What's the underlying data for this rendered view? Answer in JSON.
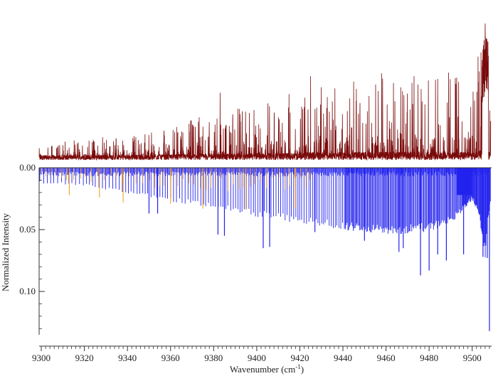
{
  "chart_data": {
    "type": "line",
    "title": "",
    "xlabel": "Wavenumber (cm⁻¹)",
    "ylabel": "Normalized Intensity",
    "xlim": [
      9299,
      9509
    ],
    "ylim": [
      0.0,
      0.135
    ],
    "x_ticks": [
      9300,
      9320,
      9340,
      9360,
      9380,
      9400,
      9420,
      9440,
      9460,
      9480,
      9500
    ],
    "x_tick_labels": [
      "9300",
      "9320",
      "9340",
      "9360",
      "9380",
      "9400",
      "9420",
      "9440",
      "9460",
      "9480",
      "9500"
    ],
    "y_ticks": [
      0.0,
      0.05,
      0.1
    ],
    "y_tick_labels": [
      "0.00",
      "0.05",
      "0.10"
    ],
    "grid": false,
    "legend": "none",
    "colors": {
      "observed": "#7a0a0a",
      "simulated_main": "#2222ee",
      "simulated_secondary": "#f0a020",
      "axis": "#333333"
    },
    "series": [
      {
        "role": "observed spectrum (upper trace, arbitrary scale)",
        "envelope": {
          "x": [
            9299,
            9320,
            9340,
            9360,
            9380,
            9400,
            9420,
            9425,
            9440,
            9460,
            9480,
            9495,
            9502,
            9505,
            9507,
            9509
          ],
          "peak_height": [
            0.08,
            0.12,
            0.16,
            0.22,
            0.32,
            0.38,
            0.45,
            0.55,
            0.52,
            0.58,
            0.6,
            0.58,
            0.65,
            0.85,
            1.0,
            0.3
          ]
        },
        "notable_peaks": [
          {
            "x": 9383,
            "height": 0.5
          },
          {
            "x": 9425,
            "height": 0.62
          },
          {
            "x": 9445,
            "height": 0.58
          },
          {
            "x": 9458,
            "height": 0.64
          },
          {
            "x": 9473,
            "height": 0.62
          },
          {
            "x": 9484,
            "height": 0.6
          },
          {
            "x": 9506,
            "height": 1.0
          }
        ]
      },
      {
        "role": "simulated stick spectrum (blue)",
        "baseline_envelope": {
          "x": [
            9299,
            9320,
            9340,
            9360,
            9380,
            9400,
            9420,
            9440,
            9460,
            9470,
            9480,
            9490,
            9495,
            9500,
            9503,
            9506,
            9508
          ],
          "intensity": [
            0.012,
            0.014,
            0.02,
            0.026,
            0.032,
            0.038,
            0.043,
            0.048,
            0.051,
            0.051,
            0.049,
            0.043,
            0.035,
            0.025,
            0.035,
            0.07,
            0.03
          ]
        },
        "strong_lines": [
          {
            "x": 9350,
            "intensity": 0.037
          },
          {
            "x": 9354,
            "intensity": 0.037
          },
          {
            "x": 9382,
            "intensity": 0.054
          },
          {
            "x": 9385,
            "intensity": 0.055
          },
          {
            "x": 9403,
            "intensity": 0.065
          },
          {
            "x": 9406,
            "intensity": 0.064
          },
          {
            "x": 9427,
            "intensity": 0.052
          },
          {
            "x": 9450,
            "intensity": 0.059
          },
          {
            "x": 9466,
            "intensity": 0.068
          },
          {
            "x": 9468,
            "intensity": 0.065
          },
          {
            "x": 9476,
            "intensity": 0.087
          },
          {
            "x": 9480,
            "intensity": 0.083
          },
          {
            "x": 9484,
            "intensity": 0.07
          },
          {
            "x": 9488,
            "intensity": 0.075
          },
          {
            "x": 9496,
            "intensity": 0.07
          },
          {
            "x": 9505,
            "intensity": 0.072
          },
          {
            "x": 9507,
            "intensity": 0.073
          },
          {
            "x": 9508,
            "intensity": 0.132
          }
        ]
      },
      {
        "role": "simulated secondary stick spectrum (orange)",
        "baseline_envelope": {
          "x": [
            9299,
            9320,
            9340,
            9360,
            9380,
            9400,
            9420,
            9425
          ],
          "intensity": [
            0.008,
            0.012,
            0.016,
            0.018,
            0.019,
            0.019,
            0.018,
            0.016
          ]
        },
        "strong_lines": [
          {
            "x": 9313,
            "intensity": 0.022
          },
          {
            "x": 9327,
            "intensity": 0.024
          },
          {
            "x": 9338,
            "intensity": 0.028
          },
          {
            "x": 9360,
            "intensity": 0.029
          },
          {
            "x": 9375,
            "intensity": 0.033
          },
          {
            "x": 9395,
            "intensity": 0.034
          },
          {
            "x": 9418,
            "intensity": 0.033
          }
        ]
      }
    ]
  }
}
